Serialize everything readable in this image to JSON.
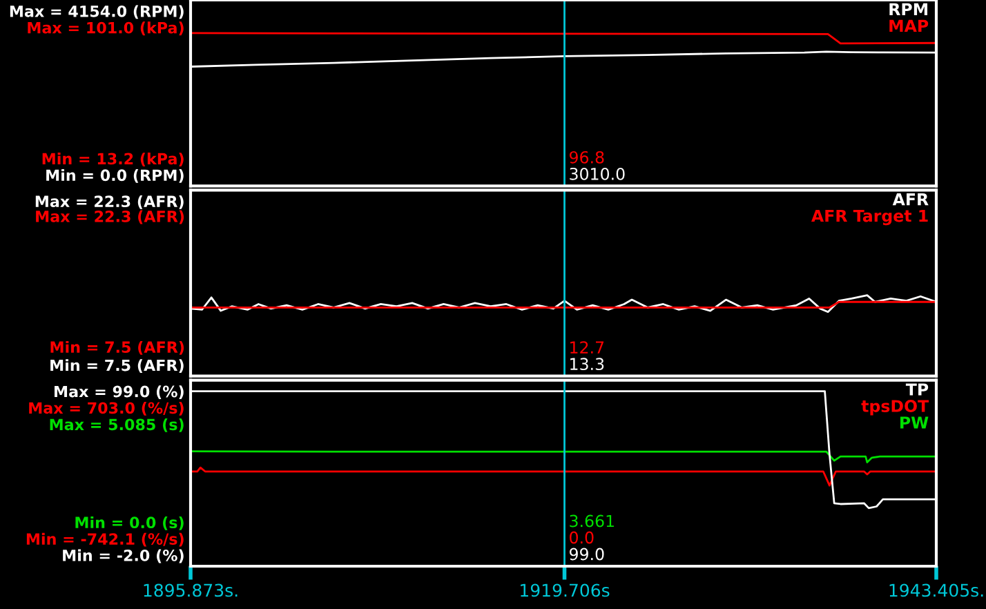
{
  "chart_data": [
    {
      "type": "line",
      "xlim": [
        1895.873,
        1943.405
      ],
      "ylim": [
        -279,
        4433
      ],
      "yticks": [
        {
          "value": 4154,
          "label": "Max = 4154.0 (RPM)"
        },
        {
          "value": 0,
          "label": "Min = 0.0 (RPM)"
        }
      ],
      "y2lim": [
        -5.2,
        119.4
      ],
      "y2ticks": [
        {
          "value": 101.0,
          "label": "Max = 101.0 (kPa)"
        },
        {
          "value": 13.2,
          "label": "Min = 13.2 (kPa)"
        }
      ],
      "tick_labels": "y",
      "grid": false,
      "legend": false,
      "series": [
        {
          "name": "RPM",
          "color": "#ffffff",
          "x": [
            1895.9,
            1900,
            1905,
            1910,
            1915,
            1919.706,
            1925,
            1930,
            1935,
            1936.4,
            1938,
            1940,
            1943.4
          ],
          "values": [
            2745,
            2790,
            2840,
            2900,
            2960,
            3010,
            3040,
            3080,
            3100,
            3125,
            3110,
            3105,
            3100
          ]
        },
        {
          "name": "MAP",
          "color": "#ff0000",
          "axis": "y2",
          "x": [
            1895.9,
            1905,
            1919.706,
            1930,
            1936.5,
            1937.3,
            1943.4
          ],
          "values": [
            97.2,
            97.0,
            96.8,
            96.7,
            96.6,
            90.3,
            90.6
          ]
        }
      ],
      "ref_lines": [
        {
          "axis": "x",
          "value": 1919.706,
          "color": "#00c8d8"
        }
      ],
      "annotations": [
        "3010.0",
        "96.8"
      ]
    },
    {
      "type": "line",
      "xlim": [
        1895.873,
        1943.405
      ],
      "ylim": [
        6.5,
        23.3
      ],
      "yticks": [
        {
          "value": 22.3,
          "label": "Max = 22.3 (AFR)"
        },
        {
          "value": 7.5,
          "label": "Min = 7.5 (AFR)"
        }
      ],
      "tick_labels": "y",
      "grid": false,
      "legend": false,
      "series": [
        {
          "name": "AFR",
          "color": "#ffffff",
          "x": [
            1895.9,
            1896.6,
            1897.2,
            1897.8,
            1898.5,
            1899.5,
            1900.2,
            1901,
            1902,
            1903,
            1904,
            1905,
            1906,
            1907,
            1908,
            1909,
            1910,
            1911,
            1912,
            1913,
            1914,
            1915,
            1916,
            1917,
            1918,
            1919,
            1919.706,
            1920.5,
            1921.5,
            1922.5,
            1923.5,
            1924,
            1925,
            1926,
            1927,
            1928,
            1929,
            1930,
            1931,
            1932,
            1933,
            1934.5,
            1935.3,
            1936,
            1936.5,
            1937.2,
            1938,
            1939,
            1939.5,
            1940.5,
            1941.5,
            1942.4,
            1943.4
          ],
          "values": [
            12.6,
            12.5,
            13.6,
            12.4,
            12.8,
            12.5,
            13.0,
            12.6,
            12.9,
            12.5,
            13.0,
            12.7,
            13.1,
            12.6,
            13.0,
            12.8,
            13.1,
            12.6,
            13.0,
            12.7,
            13.1,
            12.8,
            13.0,
            12.5,
            12.9,
            12.6,
            13.3,
            12.5,
            12.9,
            12.5,
            13.0,
            13.4,
            12.7,
            13.0,
            12.5,
            12.8,
            12.4,
            13.4,
            12.7,
            12.9,
            12.5,
            12.9,
            13.5,
            12.6,
            12.3,
            13.3,
            13.5,
            13.8,
            13.2,
            13.5,
            13.3,
            13.7,
            13.2
          ]
        },
        {
          "name": "AFR Target 1",
          "color": "#ff0000",
          "x": [
            1895.9,
            1936.6,
            1937.2,
            1943.4
          ],
          "values": [
            12.7,
            12.7,
            13.2,
            13.2
          ]
        }
      ],
      "ref_lines": [
        {
          "axis": "x",
          "value": 1919.706,
          "color": "#00c8d8"
        }
      ],
      "annotations": [
        "13.3",
        "12.7",
        "Max = 22.3 (AFR)",
        "Min = 7.5 (AFR)"
      ]
    },
    {
      "type": "line",
      "xlim": [
        1895.873,
        1943.405
      ],
      "xticks": [
        {
          "value": 1895.873,
          "label": "1895.873s."
        },
        {
          "value": 1919.706,
          "label": "1919.706s"
        },
        {
          "value": 1943.405,
          "label": "1943.405s."
        }
      ],
      "ylim": [
        -8.8,
        105.8
      ],
      "yticks": [
        {
          "value": 99.0,
          "label": "Max = 99.0 (%)"
        },
        {
          "value": -2.0,
          "label": "Min = -2.0 (%)"
        }
      ],
      "y2lim": [
        -1045,
        1006
      ],
      "y2ticks": [
        {
          "value": 703.0,
          "label": "Max = 703.0 (%/s)"
        },
        {
          "value": -742.1,
          "label": "Min = -742.1 (%/s)"
        }
      ],
      "y3lim": [
        -2.28,
        7.37
      ],
      "y3ticks": [
        {
          "value": 5.085,
          "label": "Max = 5.085 (s)"
        },
        {
          "value": 0.0,
          "label": "Min = 0.0 (s)"
        }
      ],
      "grid": false,
      "legend": false,
      "series": [
        {
          "name": "TP",
          "color": "#ffffff",
          "x": [
            1895.9,
            1936.3,
            1936.6,
            1936.9,
            1937.3,
            1938.8,
            1939.1,
            1939.6,
            1940,
            1943.4
          ],
          "values": [
            99,
            99,
            60,
            30,
            29.5,
            30,
            27,
            28,
            32.4,
            32.4
          ]
        },
        {
          "name": "tpsDOT",
          "color": "#ff0000",
          "axis": "y2",
          "x": [
            1895.9,
            1896.3,
            1896.5,
            1896.8,
            1936.2,
            1936.6,
            1937.0,
            1938.8,
            1939.0,
            1939.2,
            1943.4
          ],
          "values": [
            0,
            0,
            43,
            0,
            0,
            -155,
            0,
            0,
            -32,
            0,
            0
          ]
        },
        {
          "name": "PW",
          "color": "#00e000",
          "axis": "y3",
          "x": [
            1895.9,
            1905,
            1919.706,
            1930,
            1936.4,
            1936.9,
            1937.3,
            1938.9,
            1939.0,
            1939.3,
            1939.8,
            1943.4
          ],
          "values": [
            3.68,
            3.66,
            3.661,
            3.66,
            3.66,
            3.2,
            3.41,
            3.41,
            3.11,
            3.35,
            3.41,
            3.41
          ]
        }
      ],
      "ref_lines": [
        {
          "axis": "x",
          "value": 1919.706,
          "color": "#00c8d8"
        }
      ],
      "annotations": [
        "99.0",
        "0.0",
        "3.661"
      ]
    }
  ]
}
